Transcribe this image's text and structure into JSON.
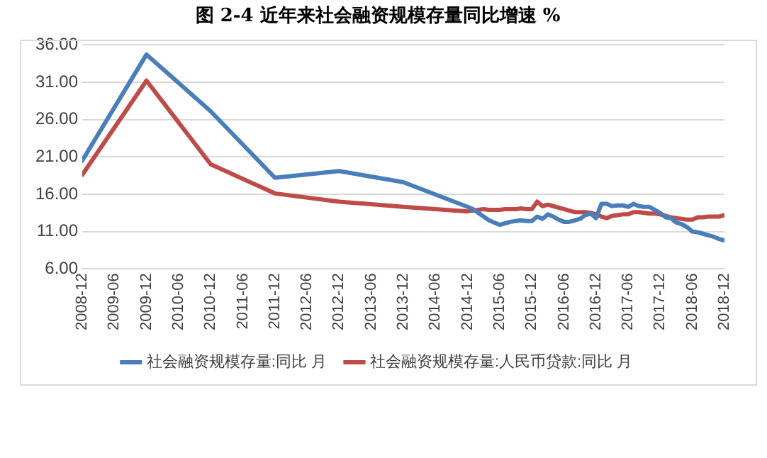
{
  "chart_data": {
    "type": "line",
    "title": "图 2-4 近年来社会融资规模存量同比增速 %",
    "x": [
      "2008-12",
      "2009-12",
      "2010-12",
      "2011-12",
      "2012-12",
      "2013-12",
      "2014-12",
      "2015-01",
      "2015-02",
      "2015-03",
      "2015-04",
      "2015-05",
      "2015-06",
      "2015-07",
      "2015-08",
      "2015-09",
      "2015-10",
      "2015-11",
      "2015-12",
      "2016-01",
      "2016-02",
      "2016-03",
      "2016-04",
      "2016-05",
      "2016-06",
      "2016-07",
      "2016-08",
      "2016-09",
      "2016-10",
      "2016-11",
      "2016-12",
      "2017-01",
      "2017-02",
      "2017-03",
      "2017-04",
      "2017-05",
      "2017-06",
      "2017-07",
      "2017-08",
      "2017-09",
      "2017-10",
      "2017-11",
      "2017-12",
      "2018-01",
      "2018-02",
      "2018-03",
      "2018-04",
      "2018-05",
      "2018-06",
      "2018-07",
      "2018-08",
      "2018-09",
      "2018-10",
      "2018-11",
      "2018-12"
    ],
    "series": [
      {
        "name": "社会融资规模存量:同比 月",
        "color": "#4a7ebb",
        "values": [
          20.5,
          34.7,
          27.1,
          18.2,
          19.1,
          17.6,
          14.3,
          14.0,
          13.5,
          13.0,
          12.5,
          12.2,
          11.9,
          12.1,
          12.3,
          12.4,
          12.5,
          12.4,
          12.4,
          13.0,
          12.7,
          13.3,
          13.0,
          12.6,
          12.3,
          12.3,
          12.5,
          12.7,
          13.2,
          13.4,
          12.8,
          14.7,
          14.7,
          14.4,
          14.5,
          14.5,
          14.3,
          14.7,
          14.4,
          14.3,
          14.3,
          13.9,
          13.5,
          12.9,
          12.8,
          12.2,
          12.0,
          11.6,
          11.0,
          10.9,
          10.7,
          10.5,
          10.3,
          10.0,
          9.8
        ]
      },
      {
        "name": "社会融资规模存量:人民币贷款:同比 月",
        "color": "#be4b48",
        "values": [
          18.6,
          31.2,
          20.0,
          16.1,
          15.0,
          14.3,
          13.7,
          13.8,
          13.9,
          14.0,
          13.9,
          13.9,
          13.9,
          14.0,
          14.0,
          14.0,
          14.1,
          14.0,
          14.0,
          15.0,
          14.4,
          14.6,
          14.4,
          14.2,
          14.0,
          13.8,
          13.6,
          13.6,
          13.6,
          13.5,
          13.3,
          13.0,
          12.8,
          13.1,
          13.2,
          13.3,
          13.3,
          13.6,
          13.6,
          13.5,
          13.4,
          13.4,
          13.3,
          13.1,
          12.9,
          12.8,
          12.7,
          12.6,
          12.6,
          12.9,
          12.9,
          13.0,
          13.0,
          13.0,
          13.2
        ]
      }
    ],
    "xlim": [
      "2008-12",
      "2018-12"
    ],
    "xticks": [
      "2008-12",
      "2009-06",
      "2009-12",
      "2010-06",
      "2010-12",
      "2011-06",
      "2011-12",
      "2012-06",
      "2012-12",
      "2013-06",
      "2013-12",
      "2014-06",
      "2014-12",
      "2015-06",
      "2015-12",
      "2016-06",
      "2016-12",
      "2017-06",
      "2017-12",
      "2018-06",
      "2018-12"
    ],
    "ylim": [
      6,
      36
    ],
    "yticks": [
      {
        "value": 6,
        "label": "6.00"
      },
      {
        "value": 11,
        "label": "11.00"
      },
      {
        "value": 16,
        "label": "16.00"
      },
      {
        "value": 21,
        "label": "21.00"
      },
      {
        "value": 26,
        "label": "26.00"
      },
      {
        "value": 31,
        "label": "31.00"
      },
      {
        "value": 36,
        "label": "36.00"
      }
    ],
    "grid": "y",
    "legend": "bottom",
    "marker": "none",
    "line_style": "solid"
  }
}
